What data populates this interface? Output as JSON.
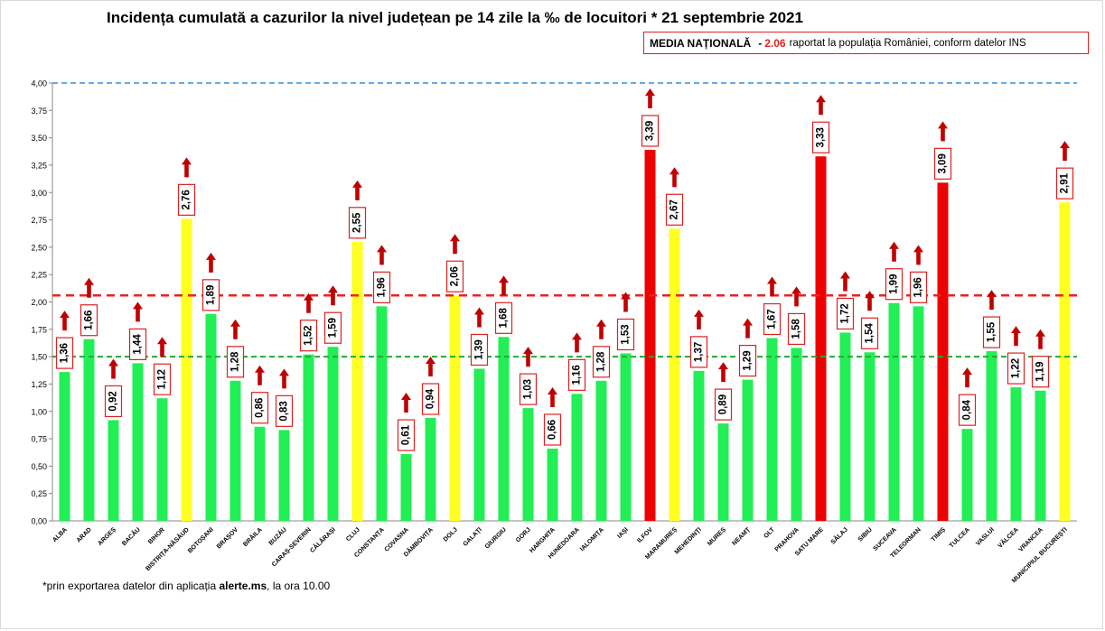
{
  "title": "Incidența cumulată a cazurilor la nivel județean pe 14 zile la ‰ de locuitori * 21 septembrie 2021",
  "media": {
    "label": "MEDIA NAȚIONALĂ",
    "dash": "-",
    "value": "2.06",
    "text": "raportat la populația României, conform datelor INS"
  },
  "footnote": {
    "prefix": "*prin exportarea  datelor din aplicația ",
    "app": "alerte.ms",
    "suffix": ", la ora 10.00"
  },
  "colors": {
    "green": "#22ee55",
    "yellow": "#ffff22",
    "red": "#ee0000",
    "label_border": "#e02020",
    "arrow": "#c00000",
    "ref_top": "#2e8fe0",
    "ref_national": "#ee2020",
    "ref_low": "#22aa33"
  },
  "chart_data": {
    "type": "bar",
    "ylim": [
      0,
      4
    ],
    "yticks": [
      "0,00",
      "0,25",
      "0,50",
      "0,75",
      "1,00",
      "1,25",
      "1,50",
      "1,75",
      "2,00",
      "2,25",
      "2,50",
      "2,75",
      "3,00",
      "3,25",
      "3,50",
      "3,75",
      "4,00"
    ],
    "reference_lines": [
      {
        "value": 4.0,
        "color": "blue"
      },
      {
        "value": 2.06,
        "color": "red"
      },
      {
        "value": 1.5,
        "color": "green"
      }
    ],
    "categories": [
      "ALBA",
      "ARAD",
      "ARGEȘ",
      "BACĂU",
      "BIHOR",
      "BISTRIȚA-NĂSĂUD",
      "BOTOȘANI",
      "BRAȘOV",
      "BRĂILA",
      "BUZĂU",
      "CARAȘ-SEVERIN",
      "CĂLĂRAȘI",
      "CLUJ",
      "CONSTANȚA",
      "COVASNA",
      "DÂMBOVIȚA",
      "DOLJ",
      "GALAȚI",
      "GIURGIU",
      "GORJ",
      "HARGHITA",
      "HUNEDOARA",
      "IALOMIȚA",
      "IAȘI",
      "ILFOV",
      "MARAMUREȘ",
      "MEHEDINȚI",
      "MUREȘ",
      "NEAMȚ",
      "OLT",
      "PRAHOVA",
      "SATU MARE",
      "SĂLAJ",
      "SIBIU",
      "SUCEAVA",
      "TELEORMAN",
      "TIMIȘ",
      "TULCEA",
      "VASLUI",
      "VÂLCEA",
      "VRANCEA",
      "MUNICIPIUL BUCUREȘTI"
    ],
    "values": [
      1.36,
      1.66,
      0.92,
      1.44,
      1.12,
      2.76,
      1.89,
      1.28,
      0.86,
      0.83,
      1.52,
      1.59,
      2.55,
      1.96,
      0.61,
      0.94,
      2.06,
      1.39,
      1.68,
      1.03,
      0.66,
      1.16,
      1.28,
      1.53,
      3.39,
      2.67,
      1.37,
      0.89,
      1.29,
      1.67,
      1.58,
      3.33,
      1.72,
      1.54,
      1.99,
      1.96,
      3.09,
      0.84,
      1.55,
      1.22,
      1.19,
      2.91
    ],
    "value_labels": [
      "1,36",
      "1,66",
      "0,92",
      "1,44",
      "1,12",
      "2,76",
      "1,89",
      "1,28",
      "0,86",
      "0,83",
      "1,52",
      "1,59",
      "2,55",
      "1,96",
      "0,61",
      "0,94",
      "2,06",
      "1,39",
      "1,68",
      "1,03",
      "0,66",
      "1,16",
      "1,28",
      "1,53",
      "3,39",
      "2,67",
      "1,37",
      "0,89",
      "1,29",
      "1,67",
      "1,58",
      "3,33",
      "1,72",
      "1,54",
      "1,99",
      "1,96",
      "3,09",
      "0,84",
      "1,55",
      "1,22",
      "1,19",
      "2,91"
    ],
    "bar_colors": [
      "green",
      "green",
      "green",
      "green",
      "green",
      "yellow",
      "green",
      "green",
      "green",
      "green",
      "green",
      "green",
      "yellow",
      "green",
      "green",
      "green",
      "yellow",
      "green",
      "green",
      "green",
      "green",
      "green",
      "green",
      "green",
      "red",
      "yellow",
      "green",
      "green",
      "green",
      "green",
      "green",
      "red",
      "green",
      "green",
      "green",
      "green",
      "red",
      "green",
      "green",
      "green",
      "green",
      "yellow"
    ],
    "arrows": [
      true,
      true,
      true,
      true,
      true,
      true,
      true,
      true,
      true,
      true,
      true,
      true,
      true,
      true,
      true,
      true,
      true,
      true,
      true,
      true,
      true,
      true,
      true,
      true,
      true,
      true,
      true,
      true,
      true,
      true,
      true,
      true,
      true,
      true,
      true,
      true,
      true,
      true,
      true,
      true,
      true,
      true
    ]
  }
}
